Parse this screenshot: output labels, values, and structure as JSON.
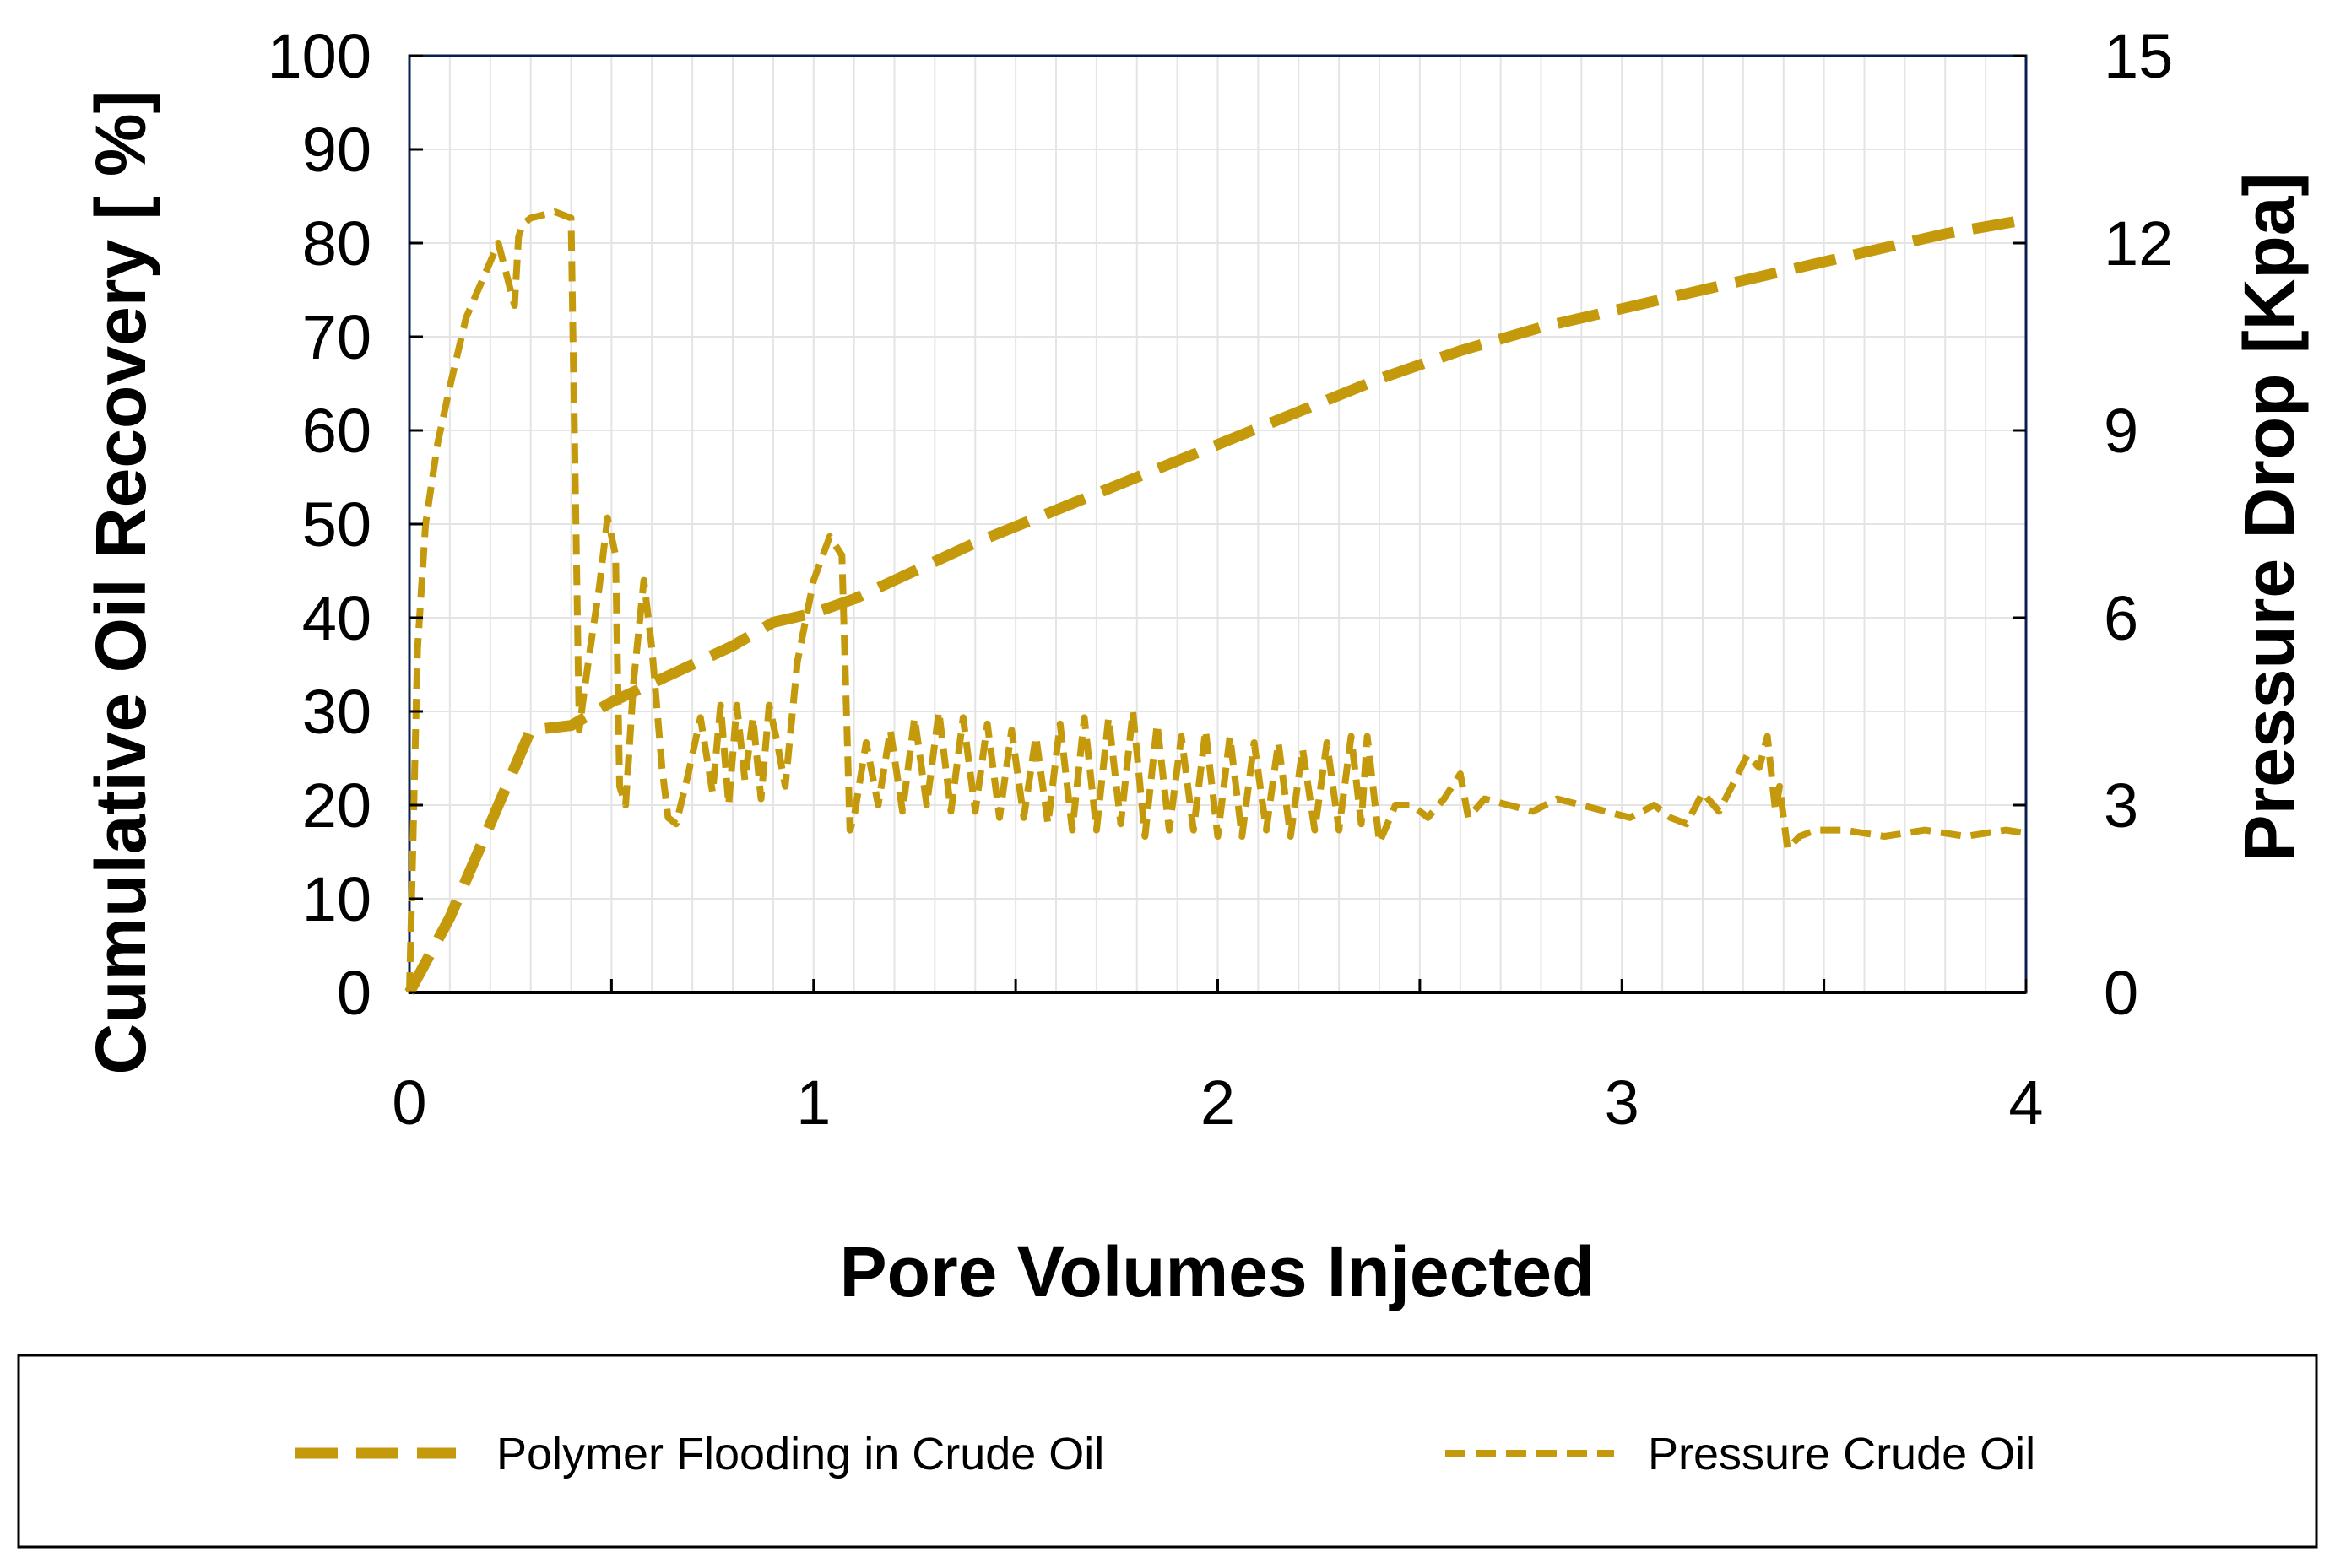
{
  "colors": {
    "series": "#C49A0C",
    "grid": "#E4E4E4",
    "frame": "#0B1F4F",
    "axis": "#000000"
  },
  "chart_data": {
    "type": "line",
    "title": "",
    "xlabel": "Pore Volumes Injected",
    "ylabel": "Cumulative Oil Recovery [ %]",
    "y2label": "Pressure Drop [Kpa]",
    "xlim": [
      0,
      4
    ],
    "ylim": [
      0,
      100
    ],
    "y2lim": [
      0,
      15
    ],
    "xticks": [
      "0",
      "1",
      "2",
      "3",
      "4"
    ],
    "yticks": [
      "0",
      "10",
      "20",
      "30",
      "40",
      "50",
      "60",
      "70",
      "80",
      "90",
      "100"
    ],
    "y2ticks": [
      "0",
      "3",
      "6",
      "9",
      "12",
      "15"
    ],
    "legend_position": "bottom",
    "series": [
      {
        "name": "Polymer Flooding in Crude Oil",
        "axis": "left",
        "dash": "long",
        "x": [
          0,
          0.1,
          0.2,
          0.3,
          0.4,
          0.5,
          0.6,
          0.7,
          0.8,
          0.9,
          1.0,
          1.1,
          1.2,
          1.4,
          1.6,
          1.8,
          2.0,
          2.2,
          2.4,
          2.6,
          2.8,
          3.0,
          3.2,
          3.4,
          3.6,
          3.8,
          4.0
        ],
        "y": [
          0,
          8,
          18,
          28,
          28.5,
          31,
          33,
          35,
          37,
          39.5,
          40.5,
          42,
          44,
          48,
          51.5,
          55,
          58.5,
          62,
          65.5,
          68.5,
          71,
          73,
          75,
          77,
          79,
          81,
          82.5
        ]
      },
      {
        "name": "Pressure Crude Oil",
        "axis": "right",
        "dash": "short",
        "x": [
          0,
          0.02,
          0.04,
          0.07,
          0.1,
          0.14,
          0.18,
          0.22,
          0.26,
          0.27,
          0.28,
          0.3,
          0.33,
          0.36,
          0.4,
          0.42,
          0.43,
          0.445,
          0.47,
          0.49,
          0.51,
          0.52,
          0.535,
          0.555,
          0.58,
          0.6,
          0.625,
          0.64,
          0.66,
          0.69,
          0.72,
          0.75,
          0.77,
          0.79,
          0.81,
          0.83,
          0.85,
          0.87,
          0.89,
          0.91,
          0.93,
          0.96,
          1.0,
          1.04,
          1.07,
          1.09,
          1.1,
          1.13,
          1.16,
          1.19,
          1.22,
          1.25,
          1.28,
          1.31,
          1.34,
          1.37,
          1.4,
          1.43,
          1.46,
          1.49,
          1.52,
          1.55,
          1.58,
          1.61,
          1.64,
          1.67,
          1.7,
          1.73,
          1.76,
          1.79,
          1.82,
          1.85,
          1.88,
          1.91,
          1.94,
          1.97,
          2.0,
          2.03,
          2.06,
          2.09,
          2.12,
          2.15,
          2.18,
          2.21,
          2.24,
          2.27,
          2.3,
          2.33,
          2.355,
          2.37,
          2.4,
          2.44,
          2.48,
          2.52,
          2.56,
          2.6,
          2.62,
          2.66,
          2.72,
          2.78,
          2.84,
          2.9,
          2.96,
          3.02,
          3.08,
          3.12,
          3.16,
          3.2,
          3.24,
          3.28,
          3.31,
          3.34,
          3.36,
          3.38,
          3.39,
          3.41,
          3.44,
          3.48,
          3.55,
          3.65,
          3.75,
          3.85,
          3.95,
          4.0
        ],
        "y": [
          0,
          5.5,
          7.5,
          8.8,
          9.7,
          10.8,
          11.4,
          12.0,
          11.0,
          12.1,
          12.3,
          12.4,
          12.45,
          12.5,
          12.4,
          4.2,
          4.7,
          5.4,
          6.5,
          7.6,
          7.0,
          3.3,
          3.0,
          5.0,
          6.6,
          5.5,
          3.6,
          2.8,
          2.7,
          3.5,
          4.4,
          3.2,
          4.6,
          3.0,
          4.6,
          3.4,
          4.4,
          3.1,
          4.6,
          4.0,
          3.3,
          5.3,
          6.6,
          7.3,
          7.0,
          2.6,
          2.8,
          4.0,
          3.0,
          4.2,
          2.9,
          4.4,
          3.0,
          4.5,
          2.9,
          4.4,
          2.9,
          4.3,
          2.8,
          4.2,
          2.8,
          4.1,
          2.7,
          4.3,
          2.6,
          4.4,
          2.6,
          4.4,
          2.7,
          4.5,
          2.5,
          4.3,
          2.6,
          4.1,
          2.6,
          4.2,
          2.5,
          4.1,
          2.5,
          4.0,
          2.6,
          4.0,
          2.5,
          3.9,
          2.6,
          4.0,
          2.6,
          4.1,
          2.7,
          4.1,
          2.4,
          3.0,
          3.0,
          2.8,
          3.1,
          3.5,
          2.8,
          3.1,
          3.0,
          2.9,
          3.1,
          3.0,
          2.9,
          2.8,
          3.0,
          2.8,
          2.7,
          3.2,
          2.9,
          3.4,
          3.8,
          3.6,
          4.1,
          2.9,
          3.3,
          2.3,
          2.5,
          2.6,
          2.6,
          2.5,
          2.6,
          2.5,
          2.6,
          2.55
        ]
      }
    ]
  }
}
